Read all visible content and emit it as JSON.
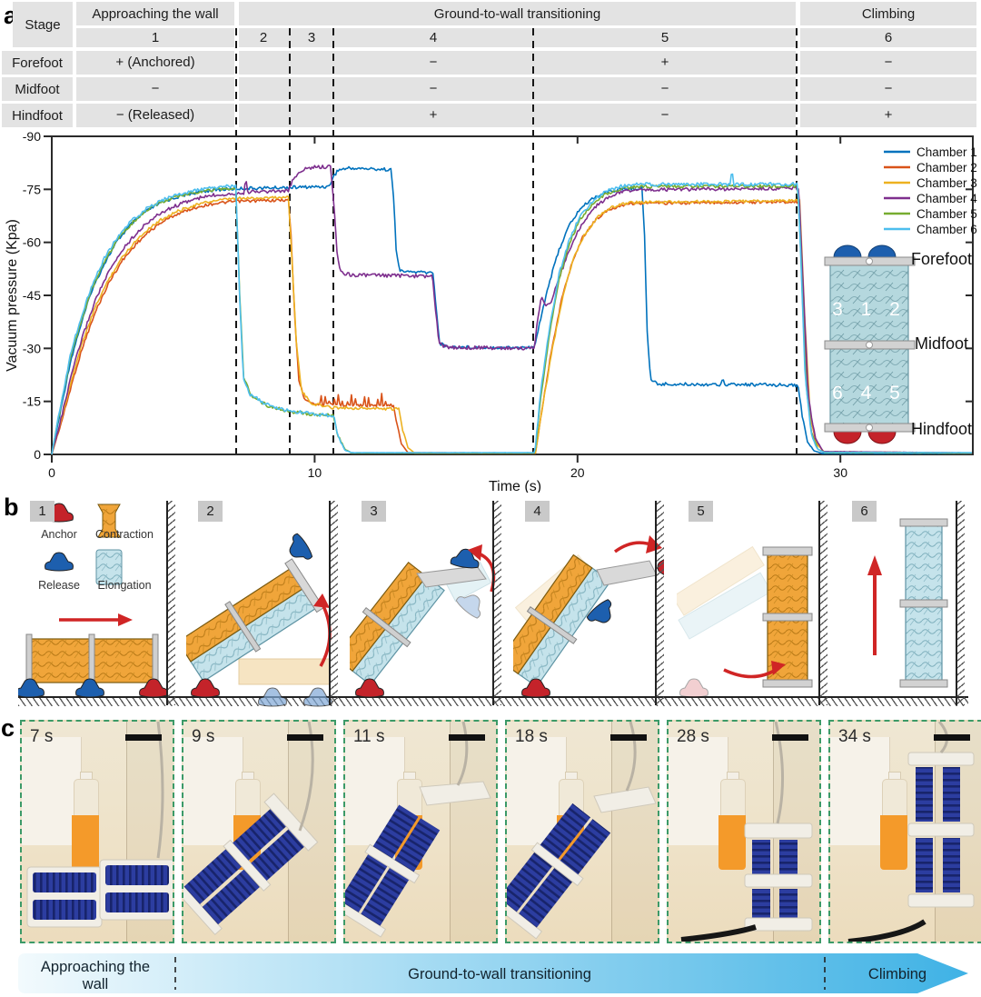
{
  "figure": {
    "panel_a_label": "a",
    "panel_b_label": "b",
    "panel_c_label": "c"
  },
  "stage_table": {
    "row_header": "Stage",
    "groups": [
      {
        "label": "Approaching the wall"
      },
      {
        "label": "Ground-to-wall transitioning"
      },
      {
        "label": "Climbing"
      }
    ],
    "stage_numbers": [
      "1",
      "2",
      "3",
      "4",
      "5",
      "6"
    ],
    "rows": [
      {
        "label": "Forefoot",
        "s1": "+ (Anchored)",
        "s4": "−",
        "s5": "+",
        "s6": "−"
      },
      {
        "label": "Midfoot",
        "s1": "−",
        "s4": "−",
        "s5": "−",
        "s6": "−"
      },
      {
        "label": "Hindfoot",
        "s1": "− (Released)",
        "s4": "+",
        "s5": "−",
        "s6": "+"
      }
    ]
  },
  "chart_data": {
    "type": "line",
    "title": "",
    "xlabel": "Time (s)",
    "ylabel": "Vacuum pressure (Kpa)",
    "xlim": [
      0,
      35.05
    ],
    "ylim": [
      0,
      -90
    ],
    "grid": false,
    "legend_position": "top-right",
    "xticks": {
      "values": [
        0,
        10,
        20,
        30
      ],
      "labels": [
        "0",
        "10",
        "20",
        "30"
      ]
    },
    "yticks": {
      "values": [
        0,
        -15,
        -30,
        -45,
        -60,
        -75,
        -90
      ],
      "labels": [
        "0",
        "-15",
        "-30",
        "-45",
        "-60",
        "-75",
        "-90"
      ]
    },
    "stage_boundaries_t": [
      7.0,
      9.05,
      10.72,
      18.32,
      28.35
    ],
    "series": [
      {
        "name": "Chamber 1",
        "color": "#0072BD",
        "noise": 0.45,
        "points": [
          [
            0,
            0
          ],
          [
            0.3,
            -11
          ],
          [
            0.7,
            -26
          ],
          [
            1,
            -34
          ],
          [
            1.5,
            -46
          ],
          [
            2,
            -54
          ],
          [
            2.5,
            -60.5
          ],
          [
            3,
            -65
          ],
          [
            3.5,
            -68.3
          ],
          [
            4,
            -70.6
          ],
          [
            4.5,
            -72.2
          ],
          [
            5,
            -73.3
          ],
          [
            5.5,
            -74.1
          ],
          [
            6,
            -74.7
          ],
          [
            7,
            -75.2
          ],
          [
            10.55,
            -75.8
          ],
          [
            10.7,
            -78.5
          ],
          [
            10.9,
            -80.5
          ],
          [
            11.3,
            -81
          ],
          [
            12.9,
            -80.6
          ],
          [
            13.0,
            -73
          ],
          [
            13.1,
            -58
          ],
          [
            13.25,
            -51.8
          ],
          [
            14.5,
            -51.4
          ],
          [
            14.62,
            -42
          ],
          [
            14.75,
            -31.5
          ],
          [
            15.05,
            -30.4
          ],
          [
            18.35,
            -30.2
          ],
          [
            18.55,
            -37
          ],
          [
            18.9,
            -48
          ],
          [
            19.3,
            -58
          ],
          [
            19.7,
            -65
          ],
          [
            20.1,
            -69.5
          ],
          [
            20.6,
            -72.6
          ],
          [
            21.1,
            -74.3
          ],
          [
            21.8,
            -75.2
          ],
          [
            22.45,
            -75.3
          ],
          [
            22.55,
            -62
          ],
          [
            22.65,
            -35
          ],
          [
            22.78,
            -21
          ],
          [
            23.1,
            -19.9
          ],
          [
            25.45,
            -19.8
          ],
          [
            25.52,
            -22
          ],
          [
            25.6,
            -19.8
          ],
          [
            28.38,
            -19.6
          ],
          [
            28.55,
            -11
          ],
          [
            28.75,
            -3.5
          ],
          [
            29,
            -1
          ],
          [
            29.3,
            -0.3
          ],
          [
            35.05,
            -0.3
          ]
        ]
      },
      {
        "name": "Chamber 2",
        "color": "#D95319",
        "noise": 0.4,
        "spikes": {
          "from": 10.05,
          "to": 13.0,
          "period": 0.165,
          "amp": -3.4
        },
        "points": [
          [
            0,
            0
          ],
          [
            0.4,
            -10
          ],
          [
            0.8,
            -21
          ],
          [
            1.2,
            -31
          ],
          [
            1.7,
            -41
          ],
          [
            2.2,
            -49
          ],
          [
            2.7,
            -55
          ],
          [
            3.2,
            -59.5
          ],
          [
            3.7,
            -63
          ],
          [
            4.2,
            -65.8
          ],
          [
            4.7,
            -67.8
          ],
          [
            5.2,
            -69.2
          ],
          [
            5.7,
            -70.3
          ],
          [
            6.2,
            -71
          ],
          [
            7,
            -71.6
          ],
          [
            9.0,
            -72
          ],
          [
            9.1,
            -62
          ],
          [
            9.25,
            -38
          ],
          [
            9.4,
            -21
          ],
          [
            9.6,
            -16
          ],
          [
            10,
            -14.2
          ],
          [
            13.0,
            -13.6
          ],
          [
            13.12,
            -9
          ],
          [
            13.3,
            -3
          ],
          [
            13.55,
            -0.5
          ],
          [
            18.4,
            -0.4
          ],
          [
            18.65,
            -13
          ],
          [
            19,
            -29
          ],
          [
            19.4,
            -44
          ],
          [
            19.8,
            -54.5
          ],
          [
            20.2,
            -61.5
          ],
          [
            20.7,
            -66.5
          ],
          [
            21.2,
            -69.3
          ],
          [
            21.9,
            -71
          ],
          [
            28.42,
            -71.5
          ],
          [
            28.6,
            -42
          ],
          [
            28.78,
            -14
          ],
          [
            29.05,
            -4
          ],
          [
            29.35,
            -0.8
          ],
          [
            35.05,
            -0.4
          ]
        ]
      },
      {
        "name": "Chamber 3",
        "color": "#EDB120",
        "noise": 0.4,
        "points": [
          [
            0,
            0
          ],
          [
            0.4,
            -11
          ],
          [
            0.8,
            -22.5
          ],
          [
            1.2,
            -32.5
          ],
          [
            1.7,
            -42.5
          ],
          [
            2.2,
            -50
          ],
          [
            2.7,
            -56
          ],
          [
            3.2,
            -60.5
          ],
          [
            3.7,
            -64
          ],
          [
            4.2,
            -66.6
          ],
          [
            4.7,
            -68.5
          ],
          [
            5.2,
            -70
          ],
          [
            5.7,
            -71
          ],
          [
            6.2,
            -71.8
          ],
          [
            7,
            -72.4
          ],
          [
            9.0,
            -72.8
          ],
          [
            9.12,
            -58
          ],
          [
            9.3,
            -32
          ],
          [
            9.5,
            -18
          ],
          [
            9.85,
            -14.5
          ],
          [
            10.6,
            -13.3
          ],
          [
            13.2,
            -12.8
          ],
          [
            13.35,
            -7
          ],
          [
            13.55,
            -2
          ],
          [
            13.8,
            -0.4
          ],
          [
            18.4,
            -0.4
          ],
          [
            18.68,
            -14
          ],
          [
            19.05,
            -30
          ],
          [
            19.45,
            -45
          ],
          [
            19.85,
            -55.5
          ],
          [
            20.25,
            -62
          ],
          [
            20.75,
            -67
          ],
          [
            21.25,
            -69.8
          ],
          [
            21.95,
            -71.3
          ],
          [
            28.45,
            -71.8
          ],
          [
            28.65,
            -38
          ],
          [
            28.85,
            -11
          ],
          [
            29.1,
            -3
          ],
          [
            29.4,
            -0.6
          ],
          [
            35.05,
            -0.4
          ]
        ]
      },
      {
        "name": "Chamber 4",
        "color": "#7E2F8E",
        "noise": 0.5,
        "points": [
          [
            0,
            0
          ],
          [
            0.35,
            -10
          ],
          [
            0.8,
            -24
          ],
          [
            1.2,
            -34
          ],
          [
            1.7,
            -44.5
          ],
          [
            2.2,
            -52
          ],
          [
            2.7,
            -58
          ],
          [
            3.2,
            -62.5
          ],
          [
            3.7,
            -66
          ],
          [
            4.2,
            -68.5
          ],
          [
            4.7,
            -70.3
          ],
          [
            5.2,
            -71.7
          ],
          [
            5.7,
            -72.7
          ],
          [
            6.2,
            -73.4
          ],
          [
            7,
            -73.9
          ],
          [
            7.3,
            -74
          ],
          [
            7.38,
            -78.5
          ],
          [
            7.46,
            -74.3
          ],
          [
            9.0,
            -74.6
          ],
          [
            9.2,
            -78
          ],
          [
            9.5,
            -80.4
          ],
          [
            9.9,
            -81.2
          ],
          [
            10.6,
            -81.4
          ],
          [
            10.72,
            -72
          ],
          [
            10.85,
            -57
          ],
          [
            11.0,
            -51.5
          ],
          [
            11.4,
            -50.8
          ],
          [
            14.48,
            -50.4
          ],
          [
            14.6,
            -41
          ],
          [
            14.73,
            -31.5
          ],
          [
            15.0,
            -30.3
          ],
          [
            18.35,
            -30
          ],
          [
            18.5,
            -39
          ],
          [
            18.62,
            -44.5
          ],
          [
            18.78,
            -42
          ],
          [
            19.0,
            -43.5
          ],
          [
            19.35,
            -51
          ],
          [
            19.75,
            -59
          ],
          [
            20.15,
            -65
          ],
          [
            20.65,
            -70
          ],
          [
            21.2,
            -73
          ],
          [
            21.9,
            -74.8
          ],
          [
            28.42,
            -75.3
          ],
          [
            28.6,
            -45
          ],
          [
            28.78,
            -16
          ],
          [
            29.05,
            -4.5
          ],
          [
            29.35,
            -0.8
          ],
          [
            35.05,
            -0.4
          ]
        ]
      },
      {
        "name": "Chamber 5",
        "color": "#77AC30",
        "noise": 0.45,
        "points": [
          [
            0,
            0
          ],
          [
            0.3,
            -12
          ],
          [
            0.7,
            -27
          ],
          [
            1,
            -35
          ],
          [
            1.5,
            -46.5
          ],
          [
            2,
            -54.5
          ],
          [
            2.5,
            -60.8
          ],
          [
            3,
            -65
          ],
          [
            3.5,
            -68.5
          ],
          [
            4,
            -70.8
          ],
          [
            4.5,
            -72.3
          ],
          [
            5,
            -73.4
          ],
          [
            5.5,
            -74.2
          ],
          [
            6,
            -74.8
          ],
          [
            6.5,
            -75.1
          ],
          [
            7.0,
            -75.3
          ],
          [
            7.15,
            -45
          ],
          [
            7.3,
            -22
          ],
          [
            7.6,
            -16.5
          ],
          [
            8.2,
            -13.8
          ],
          [
            9,
            -12.2
          ],
          [
            10,
            -11.3
          ],
          [
            10.7,
            -11
          ],
          [
            10.88,
            -5.5
          ],
          [
            11.15,
            -1.5
          ],
          [
            11.4,
            -0.4
          ],
          [
            18.38,
            -0.4
          ],
          [
            18.62,
            -17
          ],
          [
            18.95,
            -35
          ],
          [
            19.3,
            -49.5
          ],
          [
            19.7,
            -60
          ],
          [
            20.1,
            -66.5
          ],
          [
            20.6,
            -71.2
          ],
          [
            21.1,
            -73.8
          ],
          [
            21.7,
            -75.2
          ],
          [
            22.3,
            -75.8
          ],
          [
            28.38,
            -75.9
          ],
          [
            28.52,
            -52
          ],
          [
            28.68,
            -21
          ],
          [
            28.9,
            -6
          ],
          [
            29.15,
            -1.5
          ],
          [
            29.4,
            -0.5
          ],
          [
            35.05,
            -0.4
          ]
        ]
      },
      {
        "name": "Chamber 6",
        "color": "#4DBEEE",
        "noise": 0.5,
        "points": [
          [
            0,
            0
          ],
          [
            0.3,
            -12.5
          ],
          [
            0.7,
            -28
          ],
          [
            1,
            -36
          ],
          [
            1.5,
            -47.5
          ],
          [
            2,
            -55.5
          ],
          [
            2.5,
            -61.5
          ],
          [
            3,
            -65.8
          ],
          [
            3.5,
            -69
          ],
          [
            4,
            -71.3
          ],
          [
            4.5,
            -72.8
          ],
          [
            5,
            -73.9
          ],
          [
            5.5,
            -74.7
          ],
          [
            6,
            -75.3
          ],
          [
            6.5,
            -75.7
          ],
          [
            7.0,
            -76
          ],
          [
            7.15,
            -44
          ],
          [
            7.28,
            -22
          ],
          [
            7.55,
            -17
          ],
          [
            8.2,
            -14
          ],
          [
            9,
            -12.3
          ],
          [
            10,
            -11.4
          ],
          [
            10.72,
            -11
          ],
          [
            10.9,
            -5
          ],
          [
            11.15,
            -1.2
          ],
          [
            11.4,
            -0.5
          ],
          [
            18.38,
            -0.5
          ],
          [
            18.6,
            -18
          ],
          [
            18.95,
            -36.5
          ],
          [
            19.3,
            -51
          ],
          [
            19.7,
            -61
          ],
          [
            20.1,
            -67.5
          ],
          [
            20.6,
            -72
          ],
          [
            21.1,
            -74.5
          ],
          [
            21.7,
            -76
          ],
          [
            22.3,
            -76.4
          ],
          [
            25.8,
            -76.4
          ],
          [
            25.87,
            -80.5
          ],
          [
            25.95,
            -76.4
          ],
          [
            28.38,
            -76.5
          ],
          [
            28.5,
            -55
          ],
          [
            28.66,
            -22
          ],
          [
            28.88,
            -6
          ],
          [
            29.12,
            -1.5
          ],
          [
            29.38,
            -0.6
          ],
          [
            35.05,
            -0.5
          ]
        ]
      }
    ]
  },
  "inset": {
    "forefoot": "Forefoot",
    "midfoot": "Midfoot",
    "hindfoot": "Hindfoot",
    "upper_chambers": "3 1 2",
    "lower_chambers": "6 4 5"
  },
  "panel_b": {
    "stage_badges": [
      "1",
      "2",
      "3",
      "4",
      "5",
      "6"
    ],
    "legend": {
      "anchor": "Anchor",
      "release": "Release",
      "contraction": "Contraction",
      "elongation": "Elongation"
    },
    "colors": {
      "anchor_red": "#c4232a",
      "release_blue": "#1d5fae",
      "contraction_orange": "#f0a53a",
      "elongation_blue": "#c5e3eb"
    }
  },
  "panel_c": {
    "photos": [
      {
        "time": "7 s"
      },
      {
        "time": "9 s"
      },
      {
        "time": "11 s"
      },
      {
        "time": "18 s"
      },
      {
        "time": "28 s"
      },
      {
        "time": "34 s"
      }
    ]
  },
  "timeline": {
    "segments": [
      {
        "label": "Approaching the wall"
      },
      {
        "label": "Ground-to-wall transitioning"
      },
      {
        "label": "Climbing"
      }
    ],
    "colors": {
      "start": "#f2fafd",
      "end": "#3fb2e5"
    }
  }
}
